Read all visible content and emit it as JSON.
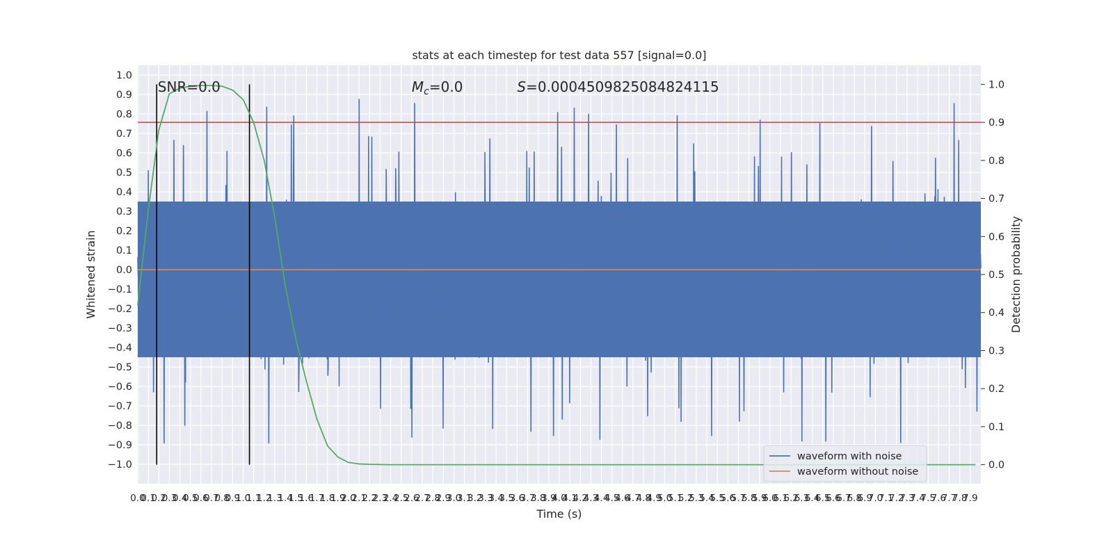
{
  "chart_data": {
    "type": "line",
    "title": "stats at each timestep for test data 557 [signal=0.0]",
    "xlabel": "Time (s)",
    "ylabel": "Whitened strain",
    "ylabel_right": "Detection probability",
    "xlim": [
      0.0,
      8.0
    ],
    "ylim": [
      -1.1,
      1.05
    ],
    "ylim_right": [
      -0.05,
      1.05
    ],
    "x_ticks": [
      "0.0",
      "0.1",
      "0.2",
      "0.3",
      "0.4",
      "0.5",
      "0.6",
      "0.7",
      "0.8",
      "0.9",
      "1.0",
      "1.1",
      "1.2",
      "1.3",
      "1.4",
      "1.5",
      "1.6",
      "1.7",
      "1.8",
      "1.9",
      "2.0",
      "2.1",
      "2.2",
      "2.3",
      "2.4",
      "2.5",
      "2.6",
      "2.7",
      "2.8",
      "2.9",
      "3.0",
      "3.1",
      "3.2",
      "3.3",
      "3.4",
      "3.5",
      "3.6",
      "3.7",
      "3.8",
      "3.9",
      "4.0",
      "4.1",
      "4.2",
      "4.3",
      "4.4",
      "4.5",
      "4.6",
      "4.7",
      "4.8",
      "4.9",
      "5.0",
      "5.1",
      "5.2",
      "5.3",
      "5.4",
      "5.5",
      "5.6",
      "5.7",
      "5.8",
      "5.9",
      "6.0",
      "6.1",
      "6.2",
      "6.3",
      "6.4",
      "6.5",
      "6.6",
      "6.7",
      "6.8",
      "6.9",
      "7.0",
      "7.1",
      "7.2",
      "7.3",
      "7.4",
      "7.5",
      "7.6",
      "7.7",
      "7.8",
      "7.9"
    ],
    "y_ticks": [
      "1.0",
      "0.9",
      "0.8",
      "0.7",
      "0.6",
      "0.5",
      "0.4",
      "0.3",
      "0.2",
      "0.1",
      "0.0",
      "−0.1",
      "−0.2",
      "−0.3",
      "−0.4",
      "−0.5",
      "−0.6",
      "−0.7",
      "−0.8",
      "−0.9",
      "−1.0"
    ],
    "y_ticks_right": [
      "1.0",
      "0.9",
      "0.8",
      "0.7",
      "0.6",
      "0.5",
      "0.4",
      "0.3",
      "0.2",
      "0.1",
      "0.0"
    ],
    "threshold_line": {
      "axis": "right",
      "y": 0.9,
      "color": "#c44e52"
    },
    "vertical_lines": [
      0.18,
      1.06
    ],
    "series": [
      {
        "name": "waveform with noise",
        "axis": "left",
        "color": "#4c72b0",
        "style": "noise",
        "band": [
          -0.45,
          0.35
        ],
        "peak_range": [
          -1.0,
          0.92
        ]
      },
      {
        "name": "waveform without noise",
        "axis": "left",
        "color": "#dd8452",
        "x": [
          0.0,
          8.0
        ],
        "y": [
          0.0,
          0.0
        ]
      },
      {
        "name": "",
        "axis": "right",
        "color": "#55a868",
        "x": [
          0.0,
          0.1,
          0.2,
          0.3,
          0.4,
          0.5,
          0.6,
          0.7,
          0.8,
          0.9,
          1.0,
          1.1,
          1.2,
          1.3,
          1.4,
          1.5,
          1.6,
          1.7,
          1.8,
          1.9,
          2.0,
          2.1,
          2.2,
          2.4,
          2.6,
          3.0,
          4.0,
          5.0,
          6.0,
          7.0,
          7.95
        ],
        "y": [
          0.42,
          0.67,
          0.88,
          0.975,
          0.99,
          0.995,
          0.997,
          0.997,
          0.995,
          0.985,
          0.96,
          0.9,
          0.8,
          0.65,
          0.47,
          0.33,
          0.22,
          0.12,
          0.05,
          0.02,
          0.006,
          0.002,
          0.001,
          0.0,
          0.0,
          0.0,
          0.0,
          0.0,
          0.0,
          0.0,
          0.0
        ]
      }
    ],
    "annotations": [
      {
        "text": "SNR=0.0",
        "x": 0.19,
        "y": 0.94
      },
      {
        "text": "=0.0",
        "math_symbol": "M",
        "math_sub": "c",
        "x": 2.6,
        "y": 0.94
      },
      {
        "text": "=0.0004509825084824115",
        "math_symbol": "S",
        "x": 3.6,
        "y": 0.94
      }
    ],
    "legend": {
      "placement": "lower-right"
    },
    "grid": true
  }
}
